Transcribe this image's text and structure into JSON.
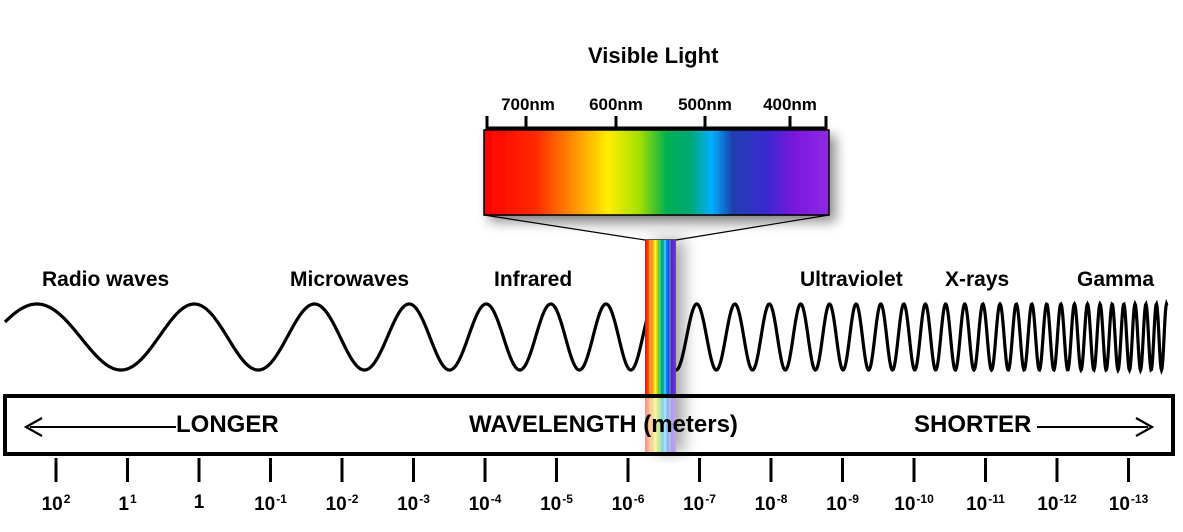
{
  "visible_light": {
    "title": "Visible Light",
    "nm_ticks": [
      "700nm",
      "600nm",
      "500nm",
      "400nm"
    ]
  },
  "bands": [
    "Radio waves",
    "Microwaves",
    "Infrared",
    "Ultraviolet",
    "X-rays",
    "Gamma"
  ],
  "axis": {
    "left_label": "LONGER",
    "center_label": "WAVELENGTH (meters)",
    "right_label": "SHORTER"
  },
  "scale": [
    {
      "base": "10",
      "exp": "2"
    },
    {
      "base": "1",
      "exp": "1"
    },
    {
      "base": "1",
      "exp": ""
    },
    {
      "base": "10",
      "exp": "-1"
    },
    {
      "base": "10",
      "exp": "-2"
    },
    {
      "base": "10",
      "exp": "-3"
    },
    {
      "base": "10",
      "exp": "-4"
    },
    {
      "base": "10",
      "exp": "-5"
    },
    {
      "base": "10",
      "exp": "-6"
    },
    {
      "base": "10",
      "exp": "-7"
    },
    {
      "base": "10",
      "exp": "-8"
    },
    {
      "base": "10",
      "exp": "-9"
    },
    {
      "base": "10",
      "exp": "-10"
    },
    {
      "base": "10",
      "exp": "-11"
    },
    {
      "base": "10",
      "exp": "-12"
    },
    {
      "base": "10",
      "exp": "-13"
    }
  ],
  "colors": {
    "spectrum": [
      "#ff0000",
      "#ff3b10",
      "#ff8c00",
      "#ffd200",
      "#ffff00",
      "#b5e61d",
      "#00b050",
      "#00a86b",
      "#00aaff",
      "#1f3fbf",
      "#2b2bc8",
      "#7a16d6",
      "#8a2be2"
    ]
  }
}
